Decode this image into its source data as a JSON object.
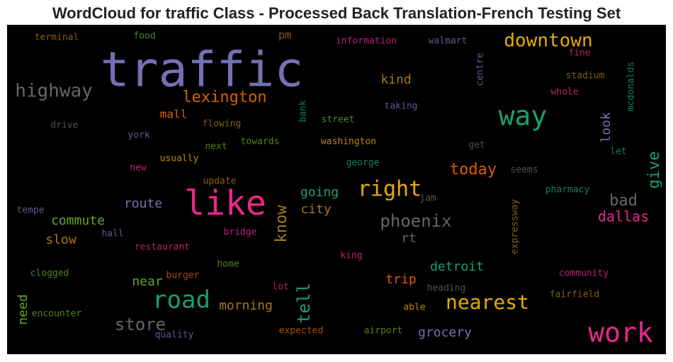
{
  "chart_data": {
    "type": "wordcloud",
    "title": "WordCloud for traffic Class - Processed Back Translation-French Testing Set",
    "words": [
      {
        "text": "terminal",
        "color": "#a6761d"
      },
      {
        "text": "food",
        "color": "#66a61e"
      },
      {
        "text": "pm",
        "color": "#a6761d"
      },
      {
        "text": "information",
        "color": "#e7298a"
      },
      {
        "text": "walmart",
        "color": "#7570b3"
      },
      {
        "text": "downtown",
        "color": "#e6ab02"
      },
      {
        "text": "centre",
        "color": "#7570b3"
      },
      {
        "text": "mcdonalds",
        "color": "#1b9e77"
      },
      {
        "text": "fine",
        "color": "#e7298a"
      },
      {
        "text": "traffic",
        "color": "#7570b3"
      },
      {
        "text": "stadium",
        "color": "#a6761d"
      },
      {
        "text": "highway",
        "color": "#666666"
      },
      {
        "text": "kind",
        "color": "#a6761d"
      },
      {
        "text": "lexington",
        "color": "#d95f02"
      },
      {
        "text": "whole",
        "color": "#e7298a"
      },
      {
        "text": "way",
        "color": "#1b9e77"
      },
      {
        "text": "bank",
        "color": "#1b9e77"
      },
      {
        "text": "mall",
        "color": "#d95f02"
      },
      {
        "text": "taking",
        "color": "#7570b3"
      },
      {
        "text": "street",
        "color": "#66a61e"
      },
      {
        "text": "drive",
        "color": "#666666"
      },
      {
        "text": "flowing",
        "color": "#a6761d"
      },
      {
        "text": "look",
        "color": "#7570b3"
      },
      {
        "text": "york",
        "color": "#7570b3"
      },
      {
        "text": "towards",
        "color": "#66a61e"
      },
      {
        "text": "washington",
        "color": "#e6ab02"
      },
      {
        "text": "next",
        "color": "#66a61e"
      },
      {
        "text": "get",
        "color": "#666666"
      },
      {
        "text": "let",
        "color": "#1b9e77"
      },
      {
        "text": "give",
        "color": "#1b9e77"
      },
      {
        "text": "usually",
        "color": "#e6ab02"
      },
      {
        "text": "george",
        "color": "#1b9e77"
      },
      {
        "text": "new",
        "color": "#e7298a"
      },
      {
        "text": "today",
        "color": "#d95f02"
      },
      {
        "text": "seems",
        "color": "#666666"
      },
      {
        "text": "update",
        "color": "#a6761d"
      },
      {
        "text": "right",
        "color": "#e6ab02"
      },
      {
        "text": "like",
        "color": "#e7298a"
      },
      {
        "text": "jam",
        "color": "#666666"
      },
      {
        "text": "pharmacy",
        "color": "#1b9e77"
      },
      {
        "text": "going",
        "color": "#1b9e77"
      },
      {
        "text": "bad",
        "color": "#666666"
      },
      {
        "text": "tempe",
        "color": "#7570b3"
      },
      {
        "text": "route",
        "color": "#7570b3"
      },
      {
        "text": "city",
        "color": "#a6761d"
      },
      {
        "text": "know",
        "color": "#a6761d"
      },
      {
        "text": "phoenix",
        "color": "#666666"
      },
      {
        "text": "dallas",
        "color": "#e7298a"
      },
      {
        "text": "commute",
        "color": "#66a61e"
      },
      {
        "text": "hall",
        "color": "#7570b3"
      },
      {
        "text": "bridge",
        "color": "#e7298a"
      },
      {
        "text": "rt",
        "color": "#666666"
      },
      {
        "text": "slow",
        "color": "#a6761d"
      },
      {
        "text": "restaurant",
        "color": "#e7298a"
      },
      {
        "text": "expressway",
        "color": "#a6761d"
      },
      {
        "text": "king",
        "color": "#e7298a"
      },
      {
        "text": "home",
        "color": "#66a61e"
      },
      {
        "text": "detroit",
        "color": "#1b9e77"
      },
      {
        "text": "clogged",
        "color": "#66a61e"
      },
      {
        "text": "burger",
        "color": "#d95f02"
      },
      {
        "text": "community",
        "color": "#e7298a"
      },
      {
        "text": "near",
        "color": "#66a61e"
      },
      {
        "text": "trip",
        "color": "#d95f02"
      },
      {
        "text": "lot",
        "color": "#e7298a"
      },
      {
        "text": "heading",
        "color": "#666666"
      },
      {
        "text": "fairfield",
        "color": "#a6761d"
      },
      {
        "text": "road",
        "color": "#1b9e77"
      },
      {
        "text": "morning",
        "color": "#a6761d"
      },
      {
        "text": "tell",
        "color": "#1b9e77"
      },
      {
        "text": "nearest",
        "color": "#e6ab02"
      },
      {
        "text": "need",
        "color": "#66a61e"
      },
      {
        "text": "encounter",
        "color": "#66a61e"
      },
      {
        "text": "able",
        "color": "#e6ab02"
      },
      {
        "text": "store",
        "color": "#666666"
      },
      {
        "text": "grocery",
        "color": "#7570b3"
      },
      {
        "text": "work",
        "color": "#e7298a"
      },
      {
        "text": "quality",
        "color": "#7570b3"
      },
      {
        "text": "expected",
        "color": "#d95f02"
      },
      {
        "text": "airport",
        "color": "#66a61e"
      }
    ]
  }
}
